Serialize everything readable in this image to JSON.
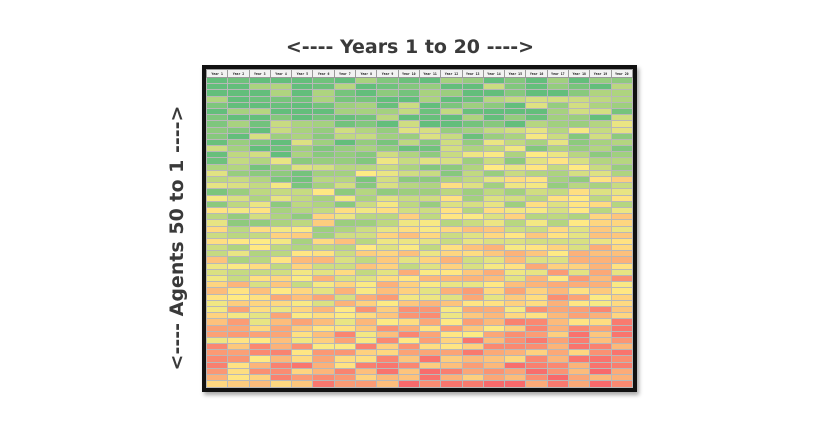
{
  "labels": {
    "top": "<---- Years 1 to 20 ---->",
    "left": "<---- Agents 50 to 1 ---->"
  },
  "table": {
    "headers": [
      "Year 1",
      "Year 2",
      "Year 3",
      "Year 4",
      "Year 5",
      "Year 6",
      "Year 7",
      "Year 8",
      "Year 9",
      "Year 10",
      "Year 11",
      "Year 12",
      "Year 13",
      "Year 14",
      "Year 15",
      "Year 16",
      "Year 17",
      "Year 18",
      "Year 19",
      "Year 20"
    ],
    "row_count": 50,
    "colors": {
      "good": "#63be7b",
      "mid": "#ffeb84",
      "bad": "#f8696b"
    }
  }
}
